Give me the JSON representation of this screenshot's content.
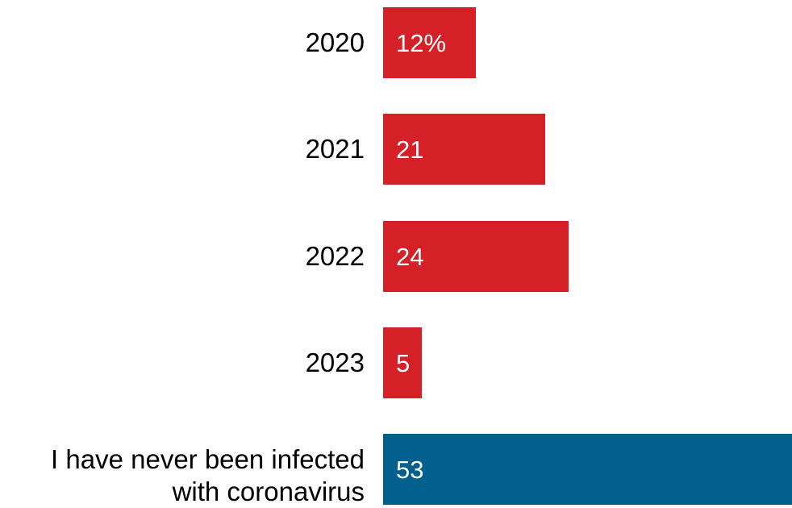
{
  "chart_data": {
    "type": "bar",
    "orientation": "horizontal",
    "categories": [
      "2020",
      "2021",
      "2022",
      "2023",
      "I have never been infected\nwith coronavirus"
    ],
    "values": [
      12,
      21,
      24,
      5,
      53
    ],
    "value_labels": [
      "12%",
      "21",
      "24",
      "5",
      "53"
    ],
    "colors": [
      "#d52027",
      "#d52027",
      "#d52027",
      "#d52027",
      "#005f8c"
    ],
    "title": "",
    "xlabel": "",
    "ylabel": "",
    "xlim": [
      0,
      53
    ],
    "grid": false,
    "legend": "none"
  }
}
